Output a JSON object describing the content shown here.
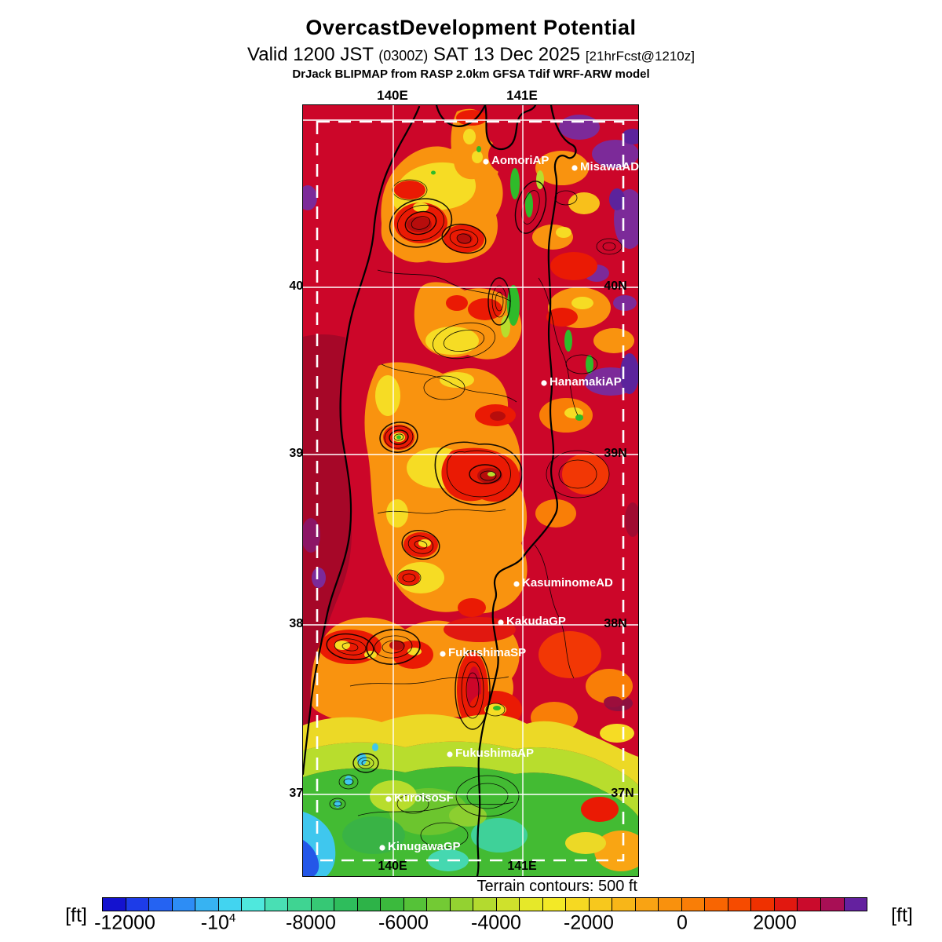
{
  "header": {
    "title": "OvercastDevelopment Potential",
    "valid_prefix": "Valid 1200 JST",
    "valid_zulu": "(0300Z)",
    "valid_date": "SAT 13 Dec 2025",
    "forecast_tag": "[21hrFcst@1210z]",
    "model_line": "DrJack BLIPMAP from RASP 2.0km GFSA Tdif WRF-ARW model"
  },
  "map": {
    "lon_labels_top": [
      "140E",
      "141E"
    ],
    "lon_labels_bottom": [
      "140E",
      "141E"
    ],
    "lat_labels_left": [
      "40N",
      "39N",
      "38N",
      "37N"
    ],
    "lat_labels_right": [
      "40N",
      "39N",
      "38N",
      "37N"
    ],
    "stations": [
      {
        "name": "AomoriAP"
      },
      {
        "name": "MisawaAD"
      },
      {
        "name": "HanamakiAP"
      },
      {
        "name": "KasuminomeAD"
      },
      {
        "name": "KakudaGP"
      },
      {
        "name": "FukushimaSP"
      },
      {
        "name": "FukushimaAP"
      },
      {
        "name": "KuroisoSF"
      },
      {
        "name": "KinugawaGP"
      }
    ],
    "terrain_note": "Terrain contours: 500 ft"
  },
  "colorbar": {
    "unit_left": "[ft]",
    "unit_right": "[ft]",
    "range_ft": [
      -12500,
      4000
    ],
    "step_ft": 500,
    "ticks": [
      {
        "label": "-12000",
        "sup": ""
      },
      {
        "label": "-10",
        "sup": "4"
      },
      {
        "label": "-8000",
        "sup": ""
      },
      {
        "label": "-6000",
        "sup": ""
      },
      {
        "label": "-4000",
        "sup": ""
      },
      {
        "label": "-2000",
        "sup": ""
      },
      {
        "label": "0",
        "sup": ""
      },
      {
        "label": "2000",
        "sup": ""
      }
    ],
    "segments": [
      "#1412cf",
      "#1d3ce8",
      "#2563f2",
      "#2d8df5",
      "#37b3f2",
      "#42d4f0",
      "#4fe8dd",
      "#49dfb4",
      "#3fd492",
      "#36c875",
      "#2ebd5c",
      "#2db348",
      "#3bba3d",
      "#55c238",
      "#73ca34",
      "#93d231",
      "#b3da2f",
      "#cfe12c",
      "#e6e829",
      "#f3e926",
      "#f6d922",
      "#f7c81d",
      "#f8b618",
      "#f9a313",
      "#f9910d",
      "#f97e07",
      "#f86502",
      "#f64b00",
      "#ef3100",
      "#e11810",
      "#ca0b2c",
      "#a80f55",
      "#64219f"
    ],
    "map_accent_colors": {
      "sea_maroon": "#a60728",
      "background_crimson": "#cc0629",
      "high_purple": "#7c2a99",
      "land_orange": "#f9930f",
      "valley_yellow": "#f6dc24",
      "low_green": "#43bb33",
      "very_low_cyan": "#3fc7ee"
    }
  }
}
